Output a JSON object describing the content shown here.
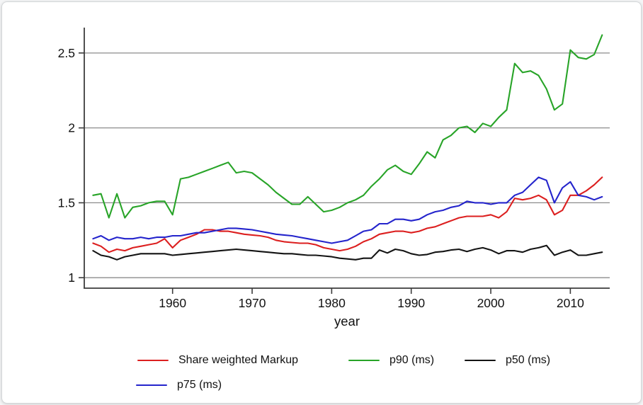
{
  "chart_data": {
    "type": "line",
    "title": "",
    "xlabel": "year",
    "ylabel": "",
    "x_tick_values": [
      1960,
      1970,
      1980,
      1990,
      2000,
      2010
    ],
    "x_tick_labels": [
      "1960",
      "1970",
      "1980",
      "1990",
      "2000",
      "2010"
    ],
    "y_tick_values": [
      1,
      1.5,
      2,
      2.5
    ],
    "y_tick_labels": [
      "1",
      "1.5",
      "2",
      "2.5"
    ],
    "xlim": [
      1948.9,
      2014.95
    ],
    "ylim": [
      0.93,
      2.66
    ],
    "grid": "horizontal gridlines at each y tick",
    "legend_position": "bottom",
    "x_range": [
      1950,
      2014
    ],
    "series": [
      {
        "name": "Share weighted Markup",
        "color": "#dc1f1f",
        "values": [
          1.23,
          1.21,
          1.17,
          1.19,
          1.18,
          1.2,
          1.21,
          1.22,
          1.23,
          1.26,
          1.2,
          1.25,
          1.27,
          1.29,
          1.32,
          1.32,
          1.31,
          1.31,
          1.3,
          1.29,
          1.285,
          1.28,
          1.27,
          1.25,
          1.24,
          1.235,
          1.23,
          1.23,
          1.22,
          1.2,
          1.19,
          1.18,
          1.19,
          1.21,
          1.24,
          1.26,
          1.29,
          1.3,
          1.31,
          1.31,
          1.3,
          1.31,
          1.33,
          1.34,
          1.36,
          1.38,
          1.4,
          1.41,
          1.41,
          1.41,
          1.42,
          1.4,
          1.44,
          1.53,
          1.52,
          1.53,
          1.55,
          1.52,
          1.42,
          1.45,
          1.55,
          1.55,
          1.58,
          1.62,
          1.67
        ]
      },
      {
        "name": "p90 (ms)",
        "color": "#28a428",
        "values": [
          1.55,
          1.56,
          1.4,
          1.56,
          1.4,
          1.47,
          1.48,
          1.5,
          1.51,
          1.51,
          1.42,
          1.66,
          1.67,
          1.69,
          1.71,
          1.73,
          1.75,
          1.77,
          1.7,
          1.71,
          1.7,
          1.66,
          1.62,
          1.57,
          1.53,
          1.49,
          1.49,
          1.54,
          1.49,
          1.44,
          1.45,
          1.47,
          1.5,
          1.52,
          1.55,
          1.61,
          1.66,
          1.72,
          1.75,
          1.71,
          1.69,
          1.76,
          1.84,
          1.8,
          1.92,
          1.95,
          2.0,
          2.01,
          1.97,
          2.03,
          2.01,
          2.07,
          2.12,
          2.43,
          2.37,
          2.38,
          2.35,
          2.26,
          2.12,
          2.16,
          2.52,
          2.47,
          2.46,
          2.49,
          2.62
        ]
      },
      {
        "name": "p50 (ms)",
        "color": "#141414",
        "values": [
          1.18,
          1.15,
          1.14,
          1.12,
          1.14,
          1.15,
          1.16,
          1.16,
          1.16,
          1.16,
          1.15,
          1.155,
          1.16,
          1.165,
          1.17,
          1.175,
          1.18,
          1.185,
          1.19,
          1.185,
          1.18,
          1.175,
          1.17,
          1.165,
          1.16,
          1.16,
          1.155,
          1.15,
          1.15,
          1.145,
          1.14,
          1.13,
          1.125,
          1.12,
          1.13,
          1.13,
          1.185,
          1.165,
          1.19,
          1.18,
          1.16,
          1.15,
          1.155,
          1.17,
          1.175,
          1.185,
          1.19,
          1.175,
          1.19,
          1.2,
          1.185,
          1.16,
          1.18,
          1.18,
          1.17,
          1.19,
          1.2,
          1.215,
          1.15,
          1.17,
          1.185,
          1.15,
          1.15,
          1.16,
          1.17
        ]
      },
      {
        "name": "p75 (ms)",
        "color": "#2424cc",
        "values": [
          1.26,
          1.28,
          1.25,
          1.27,
          1.26,
          1.26,
          1.27,
          1.26,
          1.27,
          1.27,
          1.28,
          1.28,
          1.29,
          1.3,
          1.3,
          1.31,
          1.32,
          1.33,
          1.33,
          1.325,
          1.32,
          1.31,
          1.3,
          1.29,
          1.285,
          1.28,
          1.27,
          1.26,
          1.25,
          1.24,
          1.23,
          1.24,
          1.25,
          1.28,
          1.31,
          1.32,
          1.36,
          1.36,
          1.39,
          1.39,
          1.38,
          1.39,
          1.42,
          1.44,
          1.45,
          1.47,
          1.48,
          1.51,
          1.5,
          1.5,
          1.49,
          1.5,
          1.5,
          1.55,
          1.57,
          1.62,
          1.67,
          1.65,
          1.5,
          1.6,
          1.64,
          1.55,
          1.54,
          1.52,
          1.54
        ]
      }
    ],
    "axis_color": "#3c3c3c",
    "grid_color": "#8c8c8c",
    "text_color": "#111111",
    "background": "#ffffff"
  }
}
